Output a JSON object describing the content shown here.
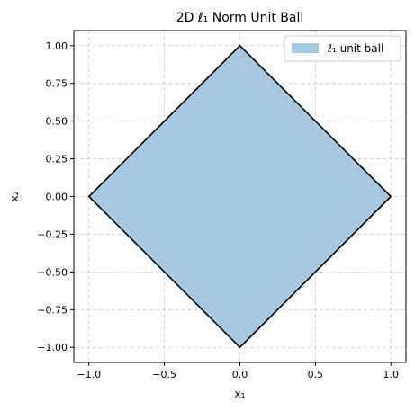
{
  "chart_data": {
    "type": "area",
    "title": "2D ℓ₁ Norm Unit Ball",
    "xlabel": "x₁",
    "ylabel": "x₂",
    "xlim": [
      -1.1,
      1.1
    ],
    "ylim": [
      -1.1,
      1.1
    ],
    "xticks": [
      -1.0,
      -0.5,
      0.0,
      0.5,
      1.0
    ],
    "xtick_labels": [
      "−1.0",
      "−0.5",
      "0.0",
      "0.5",
      "1.0"
    ],
    "yticks": [
      1.0,
      0.75,
      0.5,
      0.25,
      0.0,
      -0.25,
      -0.5,
      -0.75,
      -1.0
    ],
    "ytick_labels": [
      "1.00",
      "0.75",
      "0.50",
      "0.25",
      "0.00",
      "−0.25",
      "−0.50",
      "−0.75",
      "−1.00"
    ],
    "grid": true,
    "legend_position": "top-right",
    "series": [
      {
        "name": "ℓ₁ unit ball",
        "x": [
          1,
          0,
          -1,
          0,
          1
        ],
        "y": [
          0,
          1,
          0,
          -1,
          0
        ],
        "fill_color": "#a6c8e0",
        "edge_color": "#000000"
      }
    ]
  }
}
